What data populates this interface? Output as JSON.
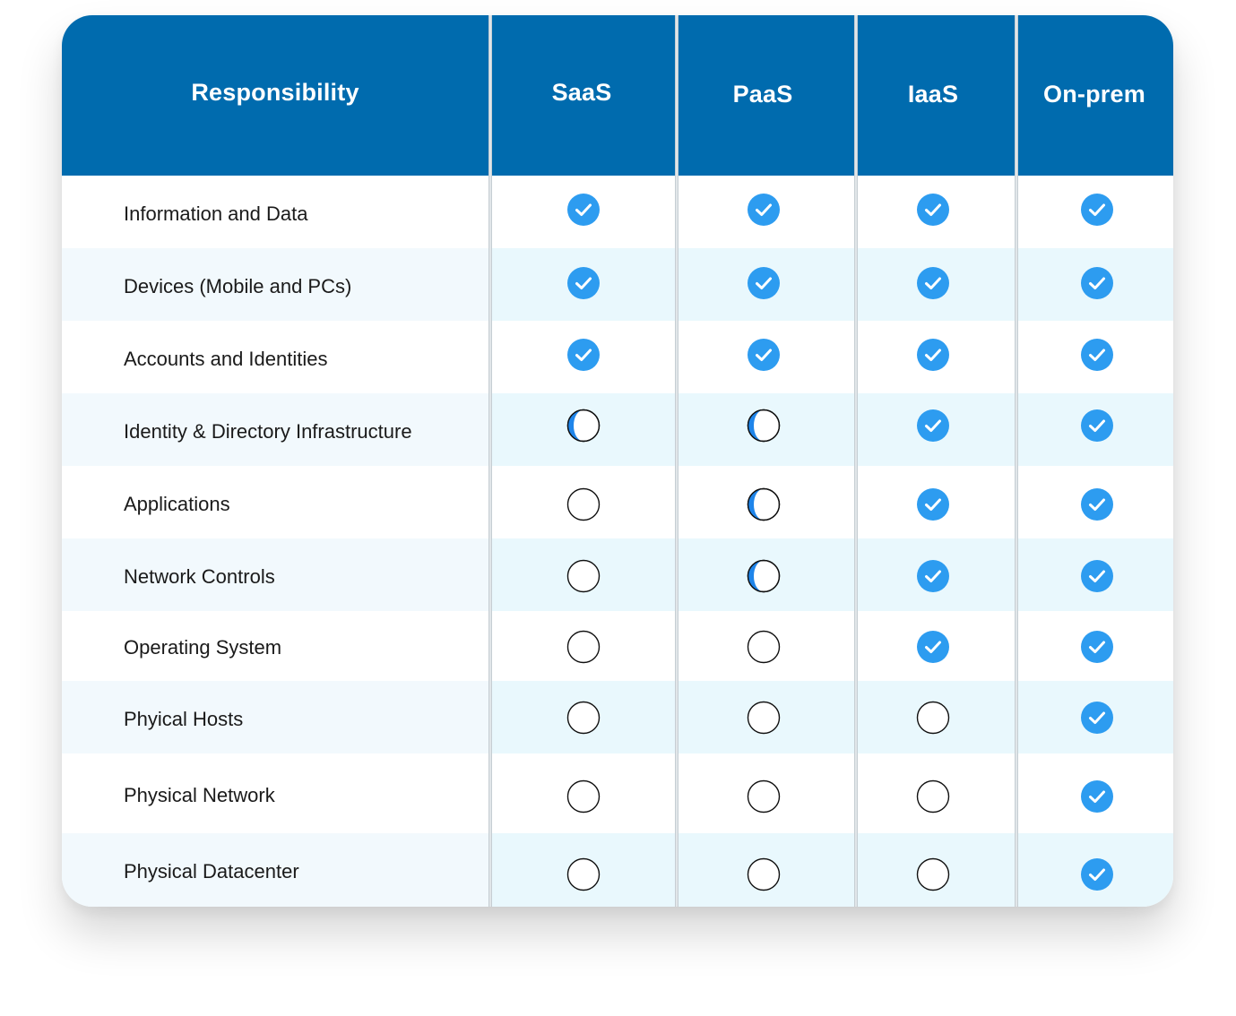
{
  "table": {
    "headers": {
      "responsibility": "Responsibility",
      "columns": [
        "SaaS",
        "PaaS",
        "IaaS",
        "On-prem"
      ]
    },
    "rows": [
      {
        "label": "Information and Data",
        "status": [
          "full",
          "full",
          "full",
          "full"
        ]
      },
      {
        "label": "Devices (Mobile and PCs)",
        "status": [
          "full",
          "full",
          "full",
          "full"
        ]
      },
      {
        "label": "Accounts and Identities",
        "status": [
          "full",
          "full",
          "full",
          "full"
        ]
      },
      {
        "label": "Identity & Directory Infrastructure",
        "status": [
          "partial",
          "partial",
          "full",
          "full"
        ]
      },
      {
        "label": "Applications",
        "status": [
          "none",
          "partial",
          "full",
          "full"
        ]
      },
      {
        "label": "Network Controls",
        "status": [
          "none",
          "partial",
          "full",
          "full"
        ]
      },
      {
        "label": "Operating System",
        "status": [
          "none",
          "none",
          "full",
          "full"
        ]
      },
      {
        "label": "Phyical Hosts",
        "status": [
          "none",
          "none",
          "none",
          "full"
        ]
      },
      {
        "label": "Physical Network",
        "status": [
          "none",
          "none",
          "none",
          "full"
        ]
      },
      {
        "label": "Physical Datacenter",
        "status": [
          "none",
          "none",
          "none",
          "full"
        ]
      }
    ]
  },
  "icons": {
    "full": "check-circle-icon",
    "partial": "half-circle-icon",
    "none": "empty-circle-icon"
  },
  "colors": {
    "header_bg": "#006bae",
    "check_fill": "#2d9cf0",
    "partial_fill": "#1f85ea",
    "alt_row_bg": "#e9f8fd"
  }
}
